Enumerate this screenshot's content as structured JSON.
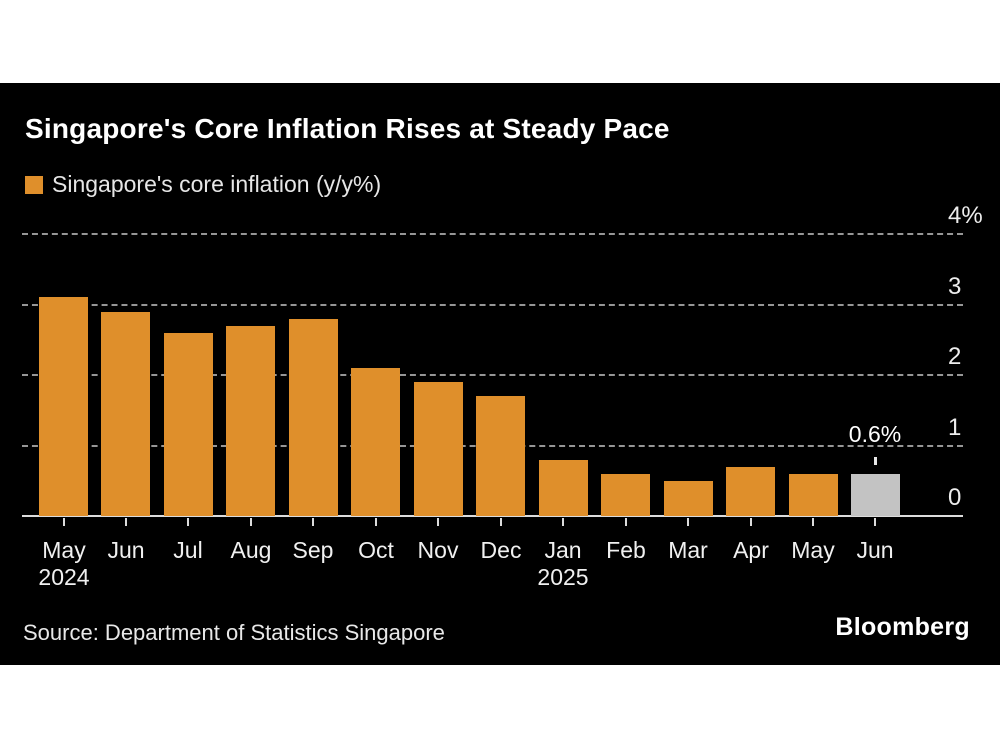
{
  "header": {
    "title": "Singapore's Core Inflation Rises at Steady Pace"
  },
  "legend": {
    "label": "Singapore's core inflation (y/y%)"
  },
  "footer": {
    "source": "Source: Department of Statistics Singapore",
    "brand": "Bloomberg"
  },
  "colors": {
    "page_background": "#ffffff",
    "panel_background": "#000000",
    "bar": "#df8f2b",
    "highlight_bar": "#c3c3c3",
    "grid": "#969696",
    "axis_line": "#dcdcdc",
    "text": "#ffffff",
    "muted_text": "#e8e8e8"
  },
  "chart_data": {
    "type": "bar",
    "title": "Singapore's Core Inflation Rises at Steady Pace",
    "legend": [
      "Singapore's core inflation (y/y%)"
    ],
    "legend_position": "top-left",
    "yaxis_position": "right",
    "grid": "horizontal-dashed",
    "x": [
      "May 2024",
      "Jun 2024",
      "Jul 2024",
      "Aug 2024",
      "Sep 2024",
      "Oct 2024",
      "Nov 2024",
      "Dec 2024",
      "Jan 2025",
      "Feb 2025",
      "Mar 2025",
      "Apr 2025",
      "May 2025",
      "Jun 2025"
    ],
    "tick_labels": [
      "May",
      "Jun",
      "Jul",
      "Aug",
      "Sep",
      "Oct",
      "Nov",
      "Dec",
      "Jan",
      "Feb",
      "Mar",
      "Apr",
      "May",
      "Jun"
    ],
    "year_markers": [
      {
        "index": 0,
        "label": "2024"
      },
      {
        "index": 8,
        "label": "2025"
      }
    ],
    "values": [
      3.1,
      2.9,
      2.6,
      2.7,
      2.8,
      2.1,
      1.9,
      1.7,
      0.8,
      0.6,
      0.5,
      0.7,
      0.6,
      0.6
    ],
    "highlight_index": 13,
    "annotation": {
      "index": 13,
      "text": "0.6%"
    },
    "ylim": [
      0,
      4
    ],
    "yticks": [
      {
        "value": 4,
        "label": "4%"
      },
      {
        "value": 3,
        "label": "3"
      },
      {
        "value": 2,
        "label": "2"
      },
      {
        "value": 1,
        "label": "1"
      },
      {
        "value": 0,
        "label": "0"
      }
    ],
    "bar_color": "#df8f2b",
    "highlight_color": "#c3c3c3"
  }
}
